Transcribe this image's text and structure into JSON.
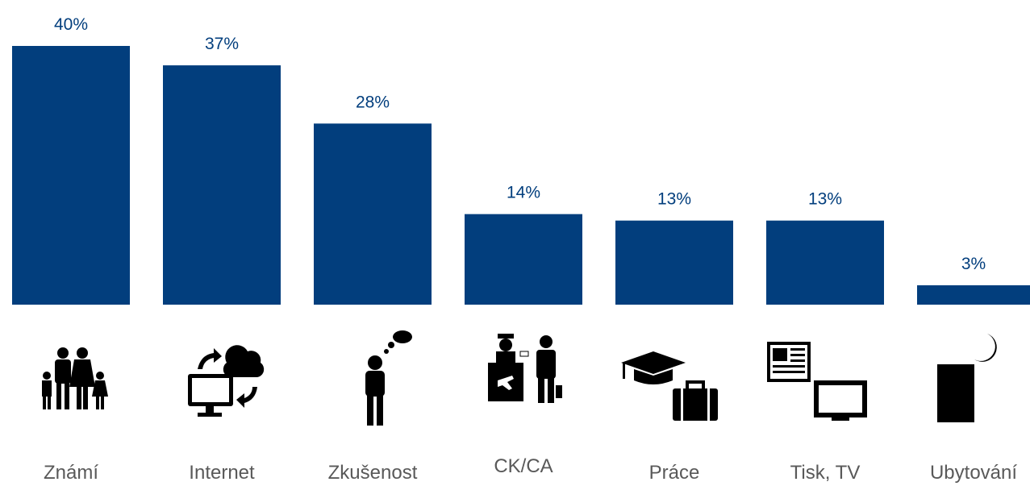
{
  "chart_data": {
    "type": "bar",
    "categories": [
      "Známí",
      "Internet",
      "Zkušenost",
      "CK/CA",
      "Práce",
      "Tisk, TV",
      "Ubytování"
    ],
    "values": [
      40,
      37,
      28,
      14,
      13,
      13,
      3
    ],
    "value_labels": [
      "40%",
      "37%",
      "28%",
      "14%",
      "13%",
      "13%",
      "3%"
    ],
    "color": "#023e7d"
  }
}
